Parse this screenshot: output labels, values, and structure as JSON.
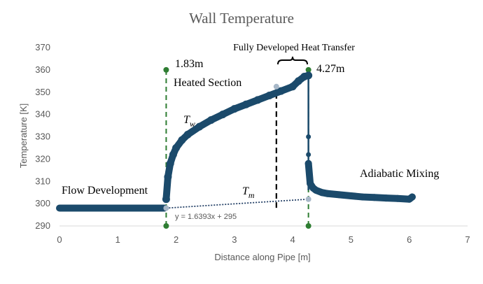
{
  "chart_data": {
    "type": "scatter",
    "title": "Wall Temperature",
    "xlabel": "Distance along Pipe [m]",
    "ylabel": "Temperature [K]",
    "xlim": [
      0,
      7
    ],
    "ylim": [
      290,
      370
    ],
    "x_ticks": [
      "0",
      "1",
      "2",
      "3",
      "4",
      "5",
      "6",
      "7"
    ],
    "y_ticks": [
      "290",
      "300",
      "310",
      "320",
      "330",
      "340",
      "350",
      "360",
      "370"
    ],
    "grid": false,
    "legend": "none",
    "colors": {
      "wall": "#1b4a6b",
      "bulk_line": "#1f3c63",
      "bulk_marker": "#a8b8c8",
      "section_line": "#2e7d32",
      "developed_line": "#000000",
      "title": "#595959",
      "axis_text": "#595959"
    },
    "series": [
      {
        "symbol": "T_w",
        "segments": {
          "flow_development": {
            "x": [
              0,
              1.8
            ],
            "y": [
              298,
              298
            ]
          },
          "heated": {
            "x": [
              1.83,
              1.86,
              1.9,
              1.95,
              2.0,
              2.1,
              2.2,
              2.4,
              2.6,
              2.8,
              3.0,
              3.2,
              3.4,
              3.6,
              3.8,
              4.0,
              4.1,
              4.2,
              4.27
            ],
            "y": [
              302,
              312,
              318,
              322,
              325,
              328.5,
              331,
              334.5,
              337.5,
              340,
              342.5,
              344.5,
              346.5,
              348.5,
              350.5,
              352.5,
              355,
              357,
              357.5
            ]
          },
          "drop": {
            "x": [
              4.27,
              4.27
            ],
            "y": [
              357.5,
              306
            ]
          },
          "adiabatic_mixing": {
            "x": [
              4.27,
              4.3,
              4.35,
              4.4,
              4.5,
              4.6,
              4.8,
              5.0,
              5.2,
              5.4,
              5.6,
              5.8,
              6.0,
              6.05
            ],
            "y": [
              318,
              309,
              307,
              306,
              305,
              304.5,
              304,
              303.5,
              303,
              302.8,
              302.5,
              302.3,
              302,
              303
            ]
          }
        }
      },
      {
        "symbol": "T_m",
        "x": [
          1.83,
          4.27
        ],
        "y": [
          298,
          302
        ]
      }
    ],
    "vertical_markers": [
      {
        "x": 1.83,
        "y": [
          290,
          360
        ],
        "label": "1.83m"
      },
      {
        "x": 4.27,
        "y": [
          290,
          360
        ],
        "label": "4.27m"
      },
      {
        "x": 3.72,
        "y": [
          298.1,
          352.5
        ],
        "label": "Fully Developed Heat Transfer"
      }
    ],
    "annotations": {
      "fully_developed": "Fully Developed Heat Transfer",
      "marker_left": "1.83m",
      "marker_right": "4.27m",
      "heated_section": "Heated Section",
      "flow_development": "Flow Development",
      "adiabatic_mixing": "Adiabatic Mixing",
      "tw_label": "T",
      "tw_sub": "w",
      "tm_label": "T",
      "tm_sub": "m",
      "trendline_equation": "y = 1.6393x + 295"
    }
  }
}
